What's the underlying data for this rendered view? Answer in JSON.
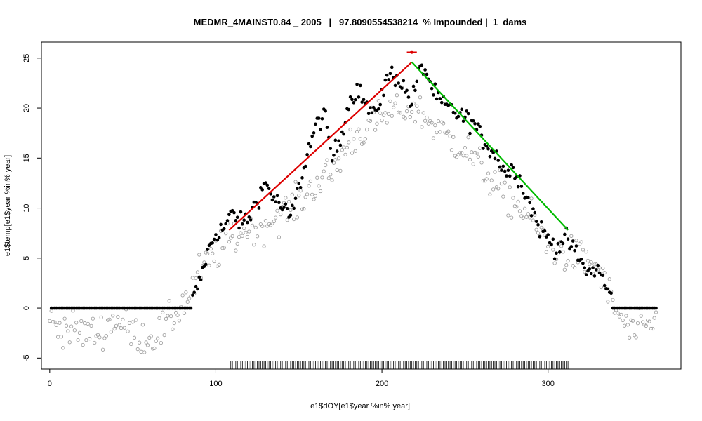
{
  "chart_data": {
    "type": "scatter",
    "title": "MEDMR_4MAINST0.84 _ 2005   |   97.8090554538214  % Impounded |  1  dams",
    "xlabel": "e1$dOY[e1$year %in% year]",
    "ylabel": "e1$temp[e1$year %in% year]",
    "xlim": [
      -5,
      380
    ],
    "ylim": [
      -6.1,
      26.6
    ],
    "x_ticks": [
      0,
      100,
      200,
      300
    ],
    "y_ticks": [
      -5,
      0,
      5,
      10,
      15,
      20,
      25
    ],
    "grid": false,
    "legend": "none",
    "colors": {
      "observed_points": "#000000",
      "other_points": "#a0a0a0",
      "rising_limb": "#dd0000",
      "falling_limb": "#00bb00",
      "peak_marker": "#dd0000",
      "rug": "#000000"
    },
    "series": [
      {
        "kind": "filled-points",
        "zero_segments": [
          [
            1,
            85
          ],
          [
            341,
            365
          ]
        ],
        "knots": [
          [
            86,
            0.8
          ],
          [
            90,
            2.5
          ],
          [
            95,
            5.5
          ],
          [
            100,
            7.5
          ],
          [
            105,
            8.0
          ],
          [
            110,
            9.5
          ],
          [
            115,
            8.5
          ],
          [
            120,
            9.0
          ],
          [
            125,
            11.0
          ],
          [
            130,
            12.5
          ],
          [
            135,
            11.0
          ],
          [
            140,
            10.0
          ],
          [
            145,
            9.0
          ],
          [
            150,
            12.0
          ],
          [
            155,
            15.5
          ],
          [
            160,
            18.0
          ],
          [
            165,
            19.5
          ],
          [
            170,
            15.0
          ],
          [
            175,
            17.0
          ],
          [
            180,
            20.5
          ],
          [
            185,
            22.0
          ],
          [
            190,
            20.5
          ],
          [
            195,
            19.0
          ],
          [
            200,
            21.5
          ],
          [
            205,
            23.5
          ],
          [
            210,
            23.0
          ],
          [
            215,
            21.5
          ],
          [
            218,
            20.5
          ],
          [
            222,
            23.5
          ],
          [
            226,
            24.0
          ],
          [
            230,
            22.0
          ],
          [
            235,
            20.5
          ],
          [
            240,
            20.0
          ],
          [
            245,
            19.5
          ],
          [
            250,
            19.0
          ],
          [
            255,
            18.5
          ],
          [
            260,
            17.0
          ],
          [
            265,
            16.0
          ],
          [
            270,
            15.0
          ],
          [
            275,
            13.5
          ],
          [
            280,
            14.0
          ],
          [
            285,
            12.0
          ],
          [
            290,
            10.0
          ],
          [
            295,
            8.0
          ],
          [
            300,
            7.0
          ],
          [
            305,
            6.0
          ],
          [
            310,
            7.0
          ],
          [
            315,
            6.0
          ],
          [
            320,
            4.5
          ],
          [
            325,
            3.5
          ],
          [
            330,
            4.0
          ],
          [
            335,
            2.0
          ],
          [
            338,
            1.0
          ],
          [
            340,
            0.2
          ]
        ],
        "noise": 1.4
      },
      {
        "kind": "open-points",
        "knots": [
          [
            0,
            -1.5
          ],
          [
            10,
            -2.0
          ],
          [
            20,
            -2.5
          ],
          [
            30,
            -2.5
          ],
          [
            40,
            -1.0
          ],
          [
            50,
            -2.5
          ],
          [
            60,
            -3.0
          ],
          [
            70,
            -2.0
          ],
          [
            80,
            0.5
          ],
          [
            85,
            1.5
          ],
          [
            90,
            3.5
          ],
          [
            100,
            5.5
          ],
          [
            110,
            7.0
          ],
          [
            120,
            8.0
          ],
          [
            130,
            8.5
          ],
          [
            140,
            9.5
          ],
          [
            150,
            10.5
          ],
          [
            160,
            12.5
          ],
          [
            170,
            13.5
          ],
          [
            180,
            16.5
          ],
          [
            190,
            18.0
          ],
          [
            200,
            19.0
          ],
          [
            210,
            20.0
          ],
          [
            220,
            20.0
          ],
          [
            230,
            18.5
          ],
          [
            240,
            17.0
          ],
          [
            250,
            16.0
          ],
          [
            260,
            14.0
          ],
          [
            270,
            12.0
          ],
          [
            280,
            10.5
          ],
          [
            290,
            9.0
          ],
          [
            300,
            6.0
          ],
          [
            310,
            5.5
          ],
          [
            320,
            5.0
          ],
          [
            330,
            4.0
          ],
          [
            340,
            0.0
          ],
          [
            350,
            -2.5
          ],
          [
            360,
            -2.0
          ],
          [
            365,
            -1.0
          ]
        ],
        "noise": 2.6
      },
      {
        "kind": "line",
        "name": "",
        "points": [
          [
            108,
            7.8
          ],
          [
            218,
            24.6
          ]
        ]
      },
      {
        "kind": "line",
        "name": "",
        "points": [
          [
            218,
            24.6
          ],
          [
            312,
            7.8
          ]
        ]
      },
      {
        "kind": "peak",
        "x": 218,
        "y": 25.6,
        "x_range": [
          215,
          221
        ]
      },
      {
        "kind": "rug",
        "x_start": 109,
        "x_end": 312,
        "step": 1
      }
    ]
  }
}
